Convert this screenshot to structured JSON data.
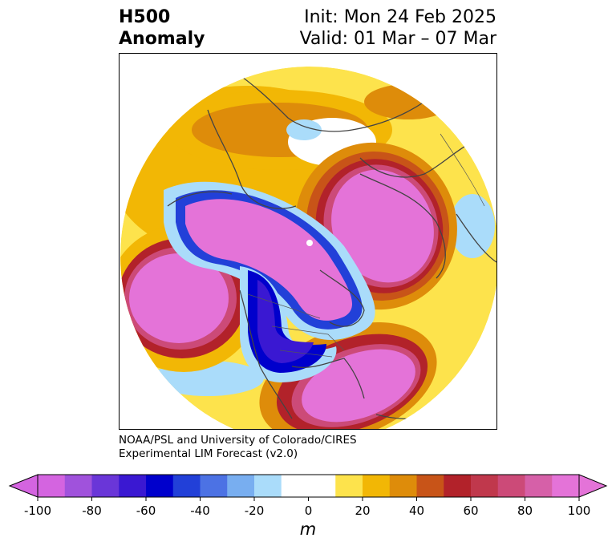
{
  "header": {
    "title_line1": "H500",
    "title_line2": "Anomaly",
    "init_text": "Init: Mon 24 Feb 2025",
    "valid_text": "Valid: 01 Mar – 07 Mar"
  },
  "map": {
    "projection": "north-polar-stereographic",
    "field": "500 hPa geopotential height anomaly"
  },
  "credit": {
    "line1": "NOAA/PSL and University of Colorado/CIRES",
    "line2": "Experimental LIM Forecast (v2.0)"
  },
  "colorbar": {
    "unit": "m",
    "ticks": [
      "-100",
      "-80",
      "-60",
      "-40",
      "-20",
      "0",
      "20",
      "40",
      "60",
      "80",
      "100"
    ],
    "colors": [
      "#d464e0",
      "#a052dc",
      "#6a36d8",
      "#3a18d2",
      "#0000cc",
      "#2240d8",
      "#4c72e4",
      "#78aef0",
      "#aadcfa",
      "#ffffff",
      "#ffffff",
      "#fde34c",
      "#f2b705",
      "#de8c0a",
      "#c85418",
      "#b2222a",
      "#c0384c",
      "#cc4a78",
      "#d660a8",
      "#e473d8"
    ],
    "extend_min_color": "#d464e0",
    "extend_max_color": "#e473d8"
  }
}
